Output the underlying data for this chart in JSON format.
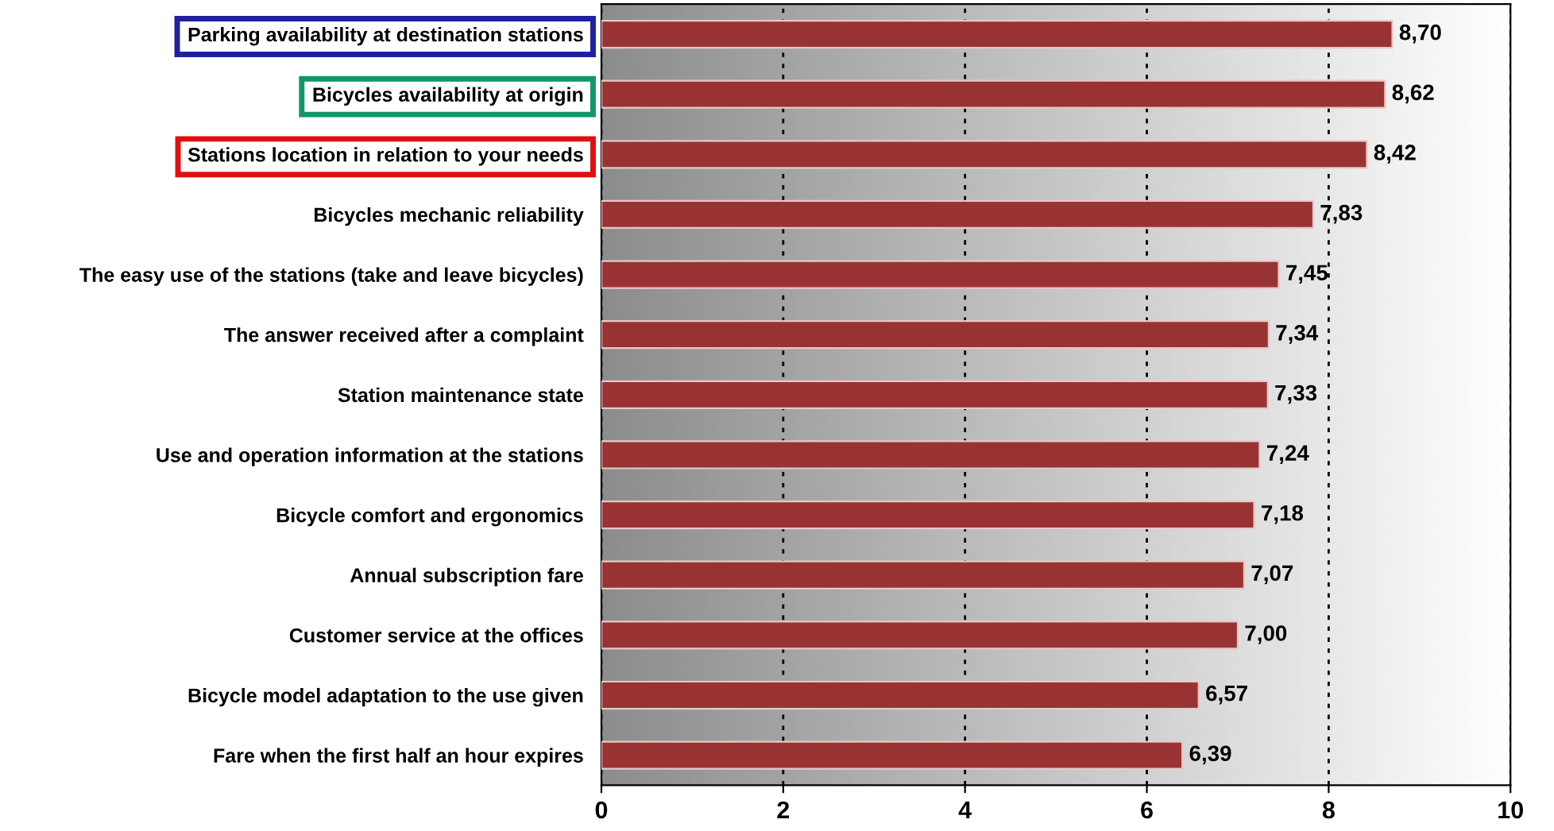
{
  "chart_data": {
    "type": "bar",
    "orientation": "horizontal",
    "categories": [
      "Parking availability at destination stations",
      "Bicycles availability at origin",
      "Stations location in relation to your needs",
      "Bicycles mechanic reliability",
      "The easy use of the stations (take and leave bicycles)",
      "The answer received after a complaint",
      "Station maintenance state",
      "Use and operation information at the stations",
      "Bicycle comfort and ergonomics",
      "Annual subscription fare",
      "Customer service at the offices",
      "Bicycle model adaptation to the use given",
      "Fare when the first half an hour expires"
    ],
    "values": [
      8.7,
      8.62,
      8.42,
      7.83,
      7.45,
      7.34,
      7.33,
      7.24,
      7.18,
      7.07,
      7.0,
      6.57,
      6.39
    ],
    "value_labels": [
      "8,70",
      "8,62",
      "8,42",
      "7,83",
      "7,45",
      "7,34",
      "7,33",
      "7,24",
      "7,18",
      "7,07",
      "7,00",
      "6,57",
      "6,39"
    ],
    "color": "#993333",
    "xlim": [
      0,
      10
    ],
    "xticks": [
      0,
      2,
      4,
      6,
      8,
      10
    ],
    "grid": "x"
  }
}
